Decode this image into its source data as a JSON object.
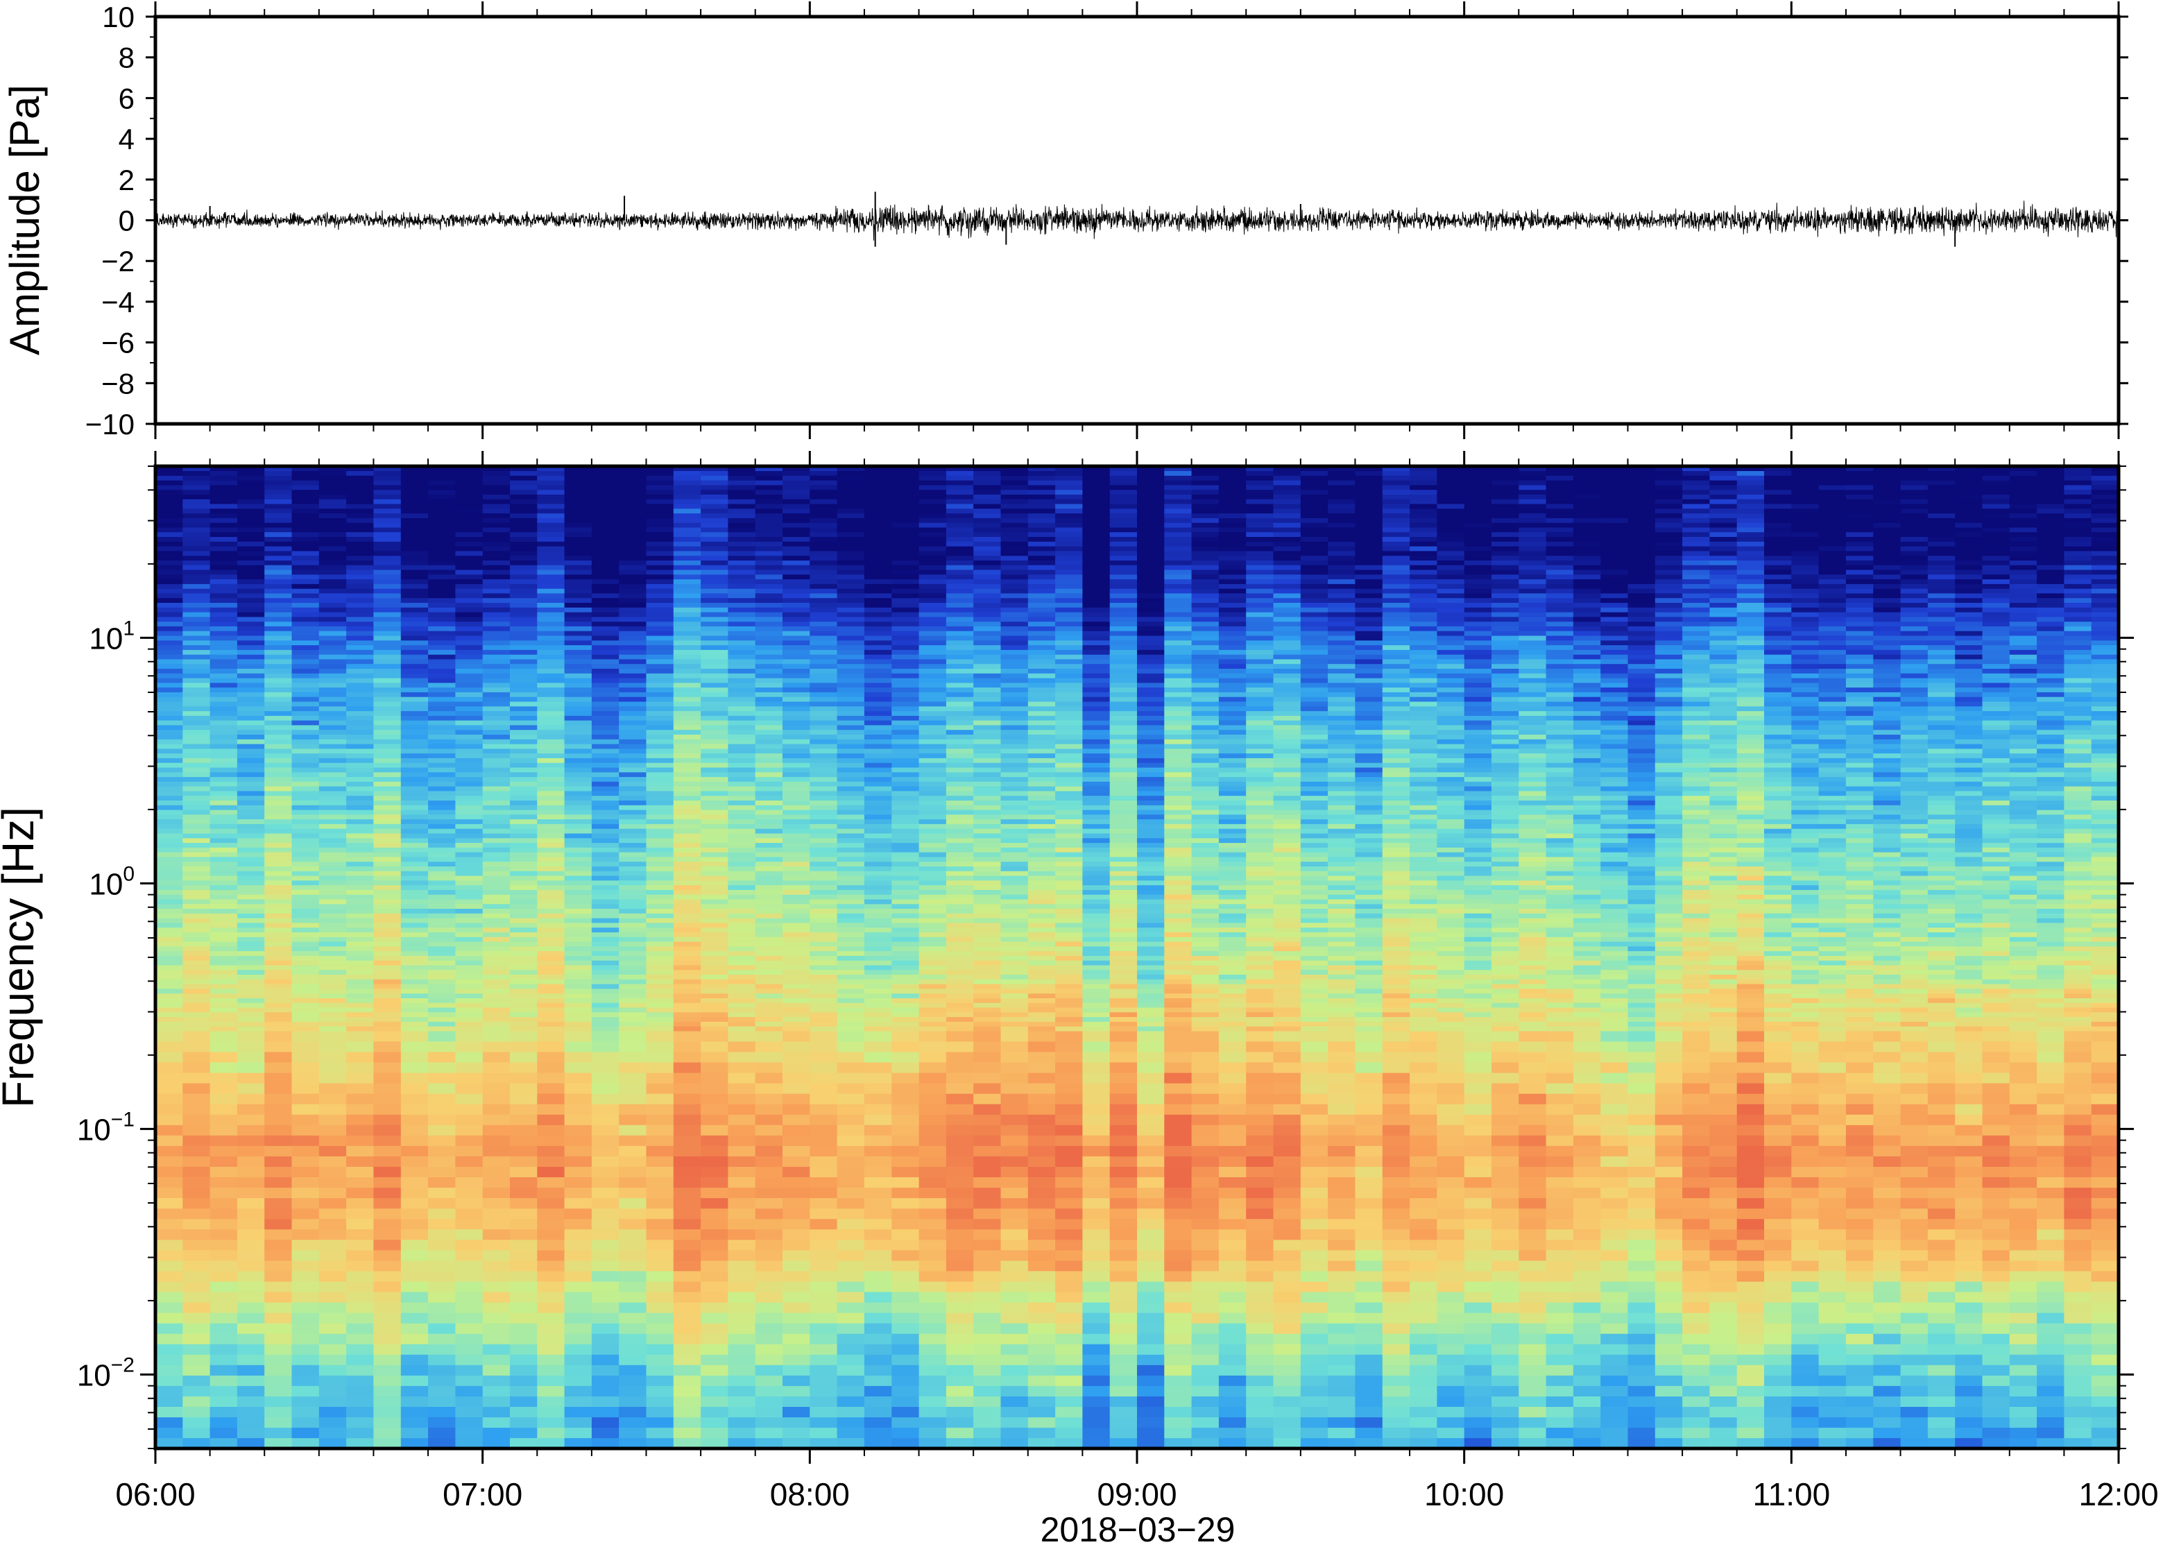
{
  "chart_data": [
    {
      "type": "line",
      "panel": "waveform",
      "ylabel": "Amplitude [Pa]",
      "xlabel": "",
      "ylim": [
        -10,
        10
      ],
      "yticks": [
        10,
        8,
        6,
        4,
        2,
        0,
        -2,
        -4,
        -6,
        -8,
        -10
      ],
      "ytick_labels": [
        "10",
        "8",
        "6",
        "4",
        "2",
        "0",
        "−2",
        "−4",
        "−6",
        "−8",
        "−10"
      ],
      "xlim": [
        "06:00",
        "12:00"
      ],
      "grid": false,
      "color": "#000000",
      "envelope": {
        "x_hours": [
          6.0,
          6.5,
          7.0,
          7.5,
          8.0,
          8.2,
          8.5,
          9.0,
          9.5,
          10.0,
          10.5,
          11.0,
          11.5,
          12.0
        ],
        "amplitude_pa": [
          0.3,
          0.3,
          0.3,
          0.35,
          0.35,
          0.6,
          0.6,
          0.55,
          0.45,
          0.4,
          0.35,
          0.5,
          0.6,
          0.55
        ]
      },
      "spikes": [
        {
          "time": "06:10",
          "value": 0.7
        },
        {
          "time": "07:26",
          "value": 1.2
        },
        {
          "time": "08:12",
          "value": 1.4
        },
        {
          "time": "08:12",
          "value": -1.3
        },
        {
          "time": "08:36",
          "value": -1.2
        },
        {
          "time": "09:30",
          "value": 0.8
        },
        {
          "time": "11:30",
          "value": -1.3
        }
      ]
    },
    {
      "type": "heatmap",
      "panel": "spectrogram",
      "ylabel": "Frequency [Hz]",
      "xlabel": "2018−03−29",
      "yscale": "log",
      "ylim": [
        0.005,
        50
      ],
      "yticks": [
        {
          "base": "10",
          "exp": "1"
        },
        {
          "base": "10",
          "exp": "0"
        },
        {
          "base": "10",
          "exp": "−1"
        },
        {
          "base": "10",
          "exp": "−2"
        }
      ],
      "xticks": [
        "06:00",
        "07:00",
        "08:00",
        "09:00",
        "10:00",
        "11:00",
        "12:00"
      ],
      "xlim": [
        "06:00",
        "12:00"
      ],
      "colormap": [
        "#0a0a78",
        "#1f3fd2",
        "#2f9ff0",
        "#6fe0d6",
        "#c8f08a",
        "#f8d070",
        "#f8a058",
        "#ec6a48"
      ],
      "grid": false
    }
  ]
}
